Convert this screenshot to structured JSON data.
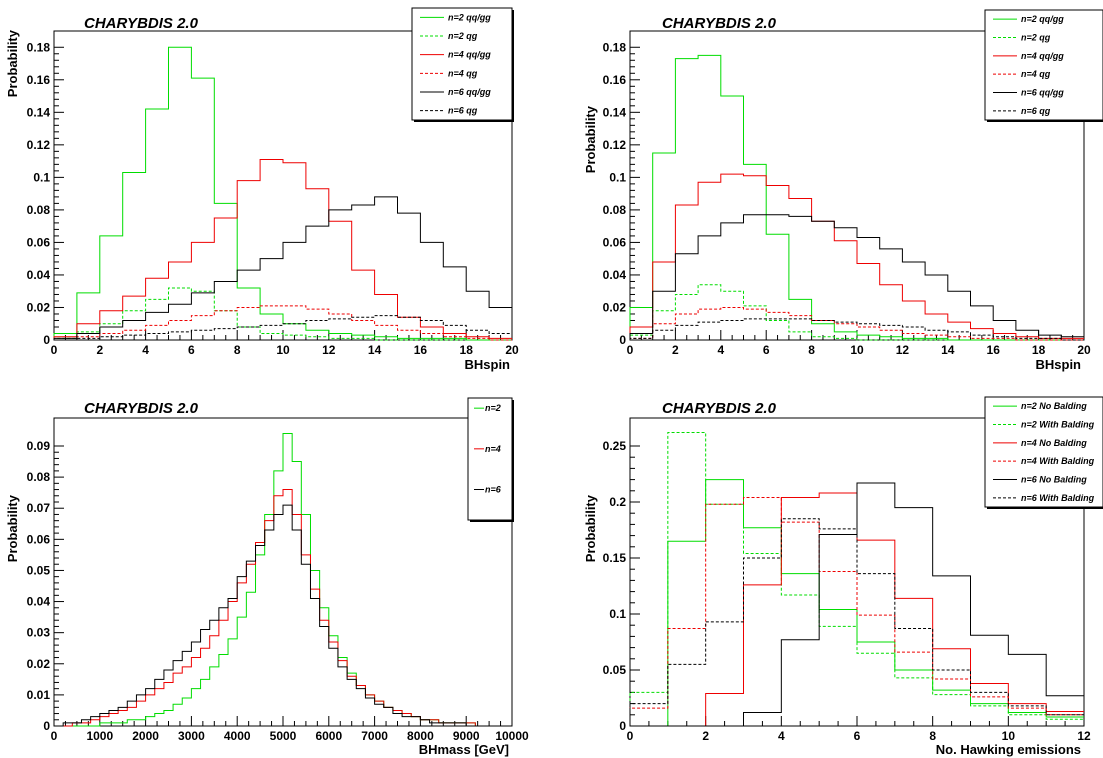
{
  "chart_data": [
    {
      "type": "line",
      "title": "CHARYBDIS 2.0",
      "xlabel": "BHspin",
      "ylabel": "Probability",
      "xlim": [
        0,
        20
      ],
      "ylim": [
        0,
        0.19
      ],
      "xticks": [
        0,
        2,
        4,
        6,
        8,
        10,
        12,
        14,
        16,
        18,
        20
      ],
      "xtick_labels": [
        "0",
        "2",
        "4",
        "6",
        "8",
        "10",
        "12",
        "14",
        "16",
        "18",
        "20"
      ],
      "yticks": [
        0,
        0.02,
        0.04,
        0.06,
        0.08,
        0.1,
        0.12,
        0.14,
        0.16,
        0.18
      ],
      "ytick_labels": [
        "0",
        "0.02",
        "0.04",
        "0.06",
        "0.08",
        "0.1",
        "0.12",
        "0.14",
        "0.16",
        "0.18"
      ],
      "bin_width": 1,
      "x": [
        0,
        1,
        2,
        3,
        4,
        5,
        6,
        7,
        8,
        9,
        10,
        11,
        12,
        13,
        14,
        15,
        16,
        17,
        18,
        19
      ],
      "legend_position": "top-right",
      "series": [
        {
          "name": "n=2 qq/gg",
          "color": "#00dd00",
          "dash": false,
          "values": [
            0.004,
            0.029,
            0.064,
            0.103,
            0.142,
            0.18,
            0.161,
            0.084,
            0.032,
            0.016,
            0.01,
            0.006,
            0.004,
            0.003,
            0.002,
            0.001,
            0.001,
            0.001,
            0.0,
            0.0
          ]
        },
        {
          "name": "n=2 qg",
          "color": "#00dd00",
          "dash": true,
          "values": [
            0.001,
            0.005,
            0.01,
            0.018,
            0.025,
            0.032,
            0.03,
            0.018,
            0.008,
            0.004,
            0.003,
            0.002,
            0.001,
            0.001,
            0.0,
            0.0,
            0.0,
            0.0,
            0.0,
            0.0
          ]
        },
        {
          "name": "n=4 qq/gg",
          "color": "#ee0000",
          "dash": false,
          "values": [
            0.002,
            0.01,
            0.018,
            0.027,
            0.038,
            0.048,
            0.06,
            0.075,
            0.098,
            0.111,
            0.109,
            0.093,
            0.073,
            0.043,
            0.028,
            0.014,
            0.008,
            0.004,
            0.002,
            0.001
          ]
        },
        {
          "name": "n=4 qg",
          "color": "#ee0000",
          "dash": true,
          "values": [
            0.0,
            0.002,
            0.004,
            0.006,
            0.009,
            0.012,
            0.015,
            0.018,
            0.02,
            0.021,
            0.021,
            0.019,
            0.016,
            0.012,
            0.009,
            0.006,
            0.004,
            0.002,
            0.001,
            0.0
          ]
        },
        {
          "name": "n=6 qq/gg",
          "color": "#000000",
          "dash": false,
          "values": [
            0.001,
            0.004,
            0.008,
            0.012,
            0.017,
            0.022,
            0.029,
            0.036,
            0.043,
            0.05,
            0.06,
            0.07,
            0.08,
            0.083,
            0.088,
            0.078,
            0.06,
            0.045,
            0.03,
            0.02
          ]
        },
        {
          "name": "n=6 qg",
          "color": "#000000",
          "dash": true,
          "values": [
            0.0,
            0.001,
            0.002,
            0.003,
            0.004,
            0.005,
            0.006,
            0.007,
            0.008,
            0.009,
            0.01,
            0.012,
            0.013,
            0.014,
            0.015,
            0.014,
            0.012,
            0.009,
            0.006,
            0.004
          ]
        }
      ]
    },
    {
      "type": "line",
      "title": "CHARYBDIS 2.0",
      "xlabel": "BHspin",
      "ylabel": "Probability",
      "xlim": [
        0,
        20
      ],
      "ylim": [
        0,
        0.19
      ],
      "xticks": [
        0,
        2,
        4,
        6,
        8,
        10,
        12,
        14,
        16,
        18,
        20
      ],
      "xtick_labels": [
        "0",
        "2",
        "4",
        "6",
        "8",
        "10",
        "12",
        "14",
        "16",
        "18",
        "20"
      ],
      "yticks": [
        0,
        0.02,
        0.04,
        0.06,
        0.08,
        0.1,
        0.12,
        0.14,
        0.16,
        0.18
      ],
      "ytick_labels": [
        "0",
        "0.02",
        "0.04",
        "0.06",
        "0.08",
        "0.1",
        "0.12",
        "0.14",
        "0.16",
        "0.18"
      ],
      "bin_width": 1,
      "x": [
        0,
        1,
        2,
        3,
        4,
        5,
        6,
        7,
        8,
        9,
        10,
        11,
        12,
        13,
        14,
        15,
        16,
        17,
        18,
        19
      ],
      "legend_position": "top-right",
      "series": [
        {
          "name": "n=2 qq/gg",
          "color": "#00dd00",
          "dash": false,
          "values": [
            0.02,
            0.115,
            0.173,
            0.175,
            0.15,
            0.108,
            0.065,
            0.025,
            0.01,
            0.005,
            0.003,
            0.002,
            0.001,
            0.001,
            0.0,
            0.0,
            0.0,
            0.0,
            0.0,
            0.0
          ]
        },
        {
          "name": "n=2 qg",
          "color": "#00dd00",
          "dash": true,
          "values": [
            0.003,
            0.018,
            0.028,
            0.034,
            0.03,
            0.021,
            0.012,
            0.005,
            0.002,
            0.001,
            0.0,
            0.0,
            0.0,
            0.0,
            0.0,
            0.0,
            0.0,
            0.0,
            0.0,
            0.0
          ]
        },
        {
          "name": "n=4 qq/gg",
          "color": "#ee0000",
          "dash": false,
          "values": [
            0.008,
            0.048,
            0.083,
            0.097,
            0.102,
            0.101,
            0.095,
            0.087,
            0.073,
            0.061,
            0.047,
            0.034,
            0.024,
            0.016,
            0.011,
            0.007,
            0.004,
            0.002,
            0.001,
            0.001
          ]
        },
        {
          "name": "n=4 qg",
          "color": "#ee0000",
          "dash": true,
          "values": [
            0.001,
            0.01,
            0.016,
            0.019,
            0.02,
            0.019,
            0.017,
            0.015,
            0.012,
            0.01,
            0.008,
            0.006,
            0.004,
            0.003,
            0.002,
            0.001,
            0.001,
            0.0,
            0.0,
            0.0
          ]
        },
        {
          "name": "n=6 qq/gg",
          "color": "#000000",
          "dash": false,
          "values": [
            0.004,
            0.03,
            0.053,
            0.064,
            0.072,
            0.077,
            0.077,
            0.076,
            0.073,
            0.069,
            0.063,
            0.056,
            0.048,
            0.04,
            0.03,
            0.021,
            0.012,
            0.006,
            0.003,
            0.002
          ]
        },
        {
          "name": "n=6 qg",
          "color": "#000000",
          "dash": true,
          "values": [
            0.001,
            0.006,
            0.009,
            0.011,
            0.012,
            0.013,
            0.013,
            0.013,
            0.012,
            0.011,
            0.01,
            0.009,
            0.008,
            0.006,
            0.005,
            0.003,
            0.002,
            0.001,
            0.001,
            0.0
          ]
        }
      ]
    },
    {
      "type": "line",
      "title": "CHARYBDIS 2.0",
      "xlabel": "BHmass [GeV]",
      "ylabel": "Probability",
      "xlim": [
        0,
        10000
      ],
      "ylim": [
        0,
        0.099
      ],
      "xticks": [
        0,
        1000,
        2000,
        3000,
        4000,
        5000,
        6000,
        7000,
        8000,
        9000,
        10000
      ],
      "xtick_labels": [
        "0",
        "1000",
        "2000",
        "3000",
        "4000",
        "5000",
        "6000",
        "7000",
        "8000",
        "9000",
        "10000"
      ],
      "yticks": [
        0,
        0.01,
        0.02,
        0.03,
        0.04,
        0.05,
        0.06,
        0.07,
        0.08,
        0.09
      ],
      "ytick_labels": [
        "0",
        "0.01",
        "0.02",
        "0.03",
        "0.04",
        "0.05",
        "0.06",
        "0.07",
        "0.08",
        "0.09"
      ],
      "bin_width": 200,
      "x": [
        0,
        200,
        400,
        600,
        800,
        1000,
        1200,
        1400,
        1600,
        1800,
        2000,
        2200,
        2400,
        2600,
        2800,
        3000,
        3200,
        3400,
        3600,
        3800,
        4000,
        4200,
        4400,
        4600,
        4800,
        5000,
        5200,
        5400,
        5600,
        5800,
        6000,
        6200,
        6400,
        6600,
        6800,
        7000,
        7200,
        7400,
        7600,
        7800,
        8000,
        8200,
        8400,
        8600,
        8800,
        9000,
        9200,
        9400,
        9600,
        9800
      ],
      "legend_position": "top-right",
      "series": [
        {
          "name": "n=2",
          "color": "#00dd00",
          "dash": false,
          "values": [
            0.0,
            0.0,
            0.0,
            0.0,
            0.0,
            0.001,
            0.001,
            0.001,
            0.002,
            0.002,
            0.003,
            0.004,
            0.005,
            0.007,
            0.009,
            0.012,
            0.015,
            0.019,
            0.023,
            0.028,
            0.035,
            0.043,
            0.055,
            0.068,
            0.082,
            0.094,
            0.085,
            0.068,
            0.05,
            0.038,
            0.029,
            0.022,
            0.017,
            0.013,
            0.01,
            0.008,
            0.006,
            0.005,
            0.004,
            0.003,
            0.002,
            0.002,
            0.001,
            0.001,
            0.001,
            0.001,
            0.0,
            0.0,
            0.0,
            0.0
          ]
        },
        {
          "name": "n=4",
          "color": "#ee0000",
          "dash": false,
          "values": [
            0.0,
            0.0,
            0.001,
            0.001,
            0.002,
            0.003,
            0.004,
            0.005,
            0.006,
            0.008,
            0.01,
            0.012,
            0.014,
            0.017,
            0.019,
            0.022,
            0.025,
            0.029,
            0.034,
            0.04,
            0.046,
            0.052,
            0.059,
            0.066,
            0.074,
            0.076,
            0.068,
            0.055,
            0.044,
            0.034,
            0.027,
            0.021,
            0.016,
            0.013,
            0.01,
            0.008,
            0.006,
            0.005,
            0.004,
            0.003,
            0.002,
            0.002,
            0.001,
            0.001,
            0.001,
            0.001,
            0.0,
            0.0,
            0.0,
            0.0
          ]
        },
        {
          "name": "n=6",
          "color": "#000000",
          "dash": false,
          "values": [
            0.0,
            0.001,
            0.001,
            0.002,
            0.003,
            0.004,
            0.005,
            0.006,
            0.008,
            0.01,
            0.012,
            0.015,
            0.018,
            0.021,
            0.024,
            0.027,
            0.031,
            0.034,
            0.038,
            0.041,
            0.048,
            0.053,
            0.058,
            0.063,
            0.068,
            0.071,
            0.063,
            0.052,
            0.041,
            0.032,
            0.025,
            0.019,
            0.015,
            0.012,
            0.009,
            0.007,
            0.006,
            0.004,
            0.003,
            0.003,
            0.002,
            0.001,
            0.001,
            0.001,
            0.001,
            0.0,
            0.0,
            0.0,
            0.0,
            0.0
          ]
        }
      ]
    },
    {
      "type": "line",
      "title": "CHARYBDIS 2.0",
      "xlabel": "No. Hawking emissions",
      "ylabel": "Probability",
      "xlim": [
        0,
        12
      ],
      "ylim": [
        0,
        0.275
      ],
      "xticks": [
        0,
        2,
        4,
        6,
        8,
        10,
        12
      ],
      "xtick_labels": [
        "0",
        "2",
        "4",
        "6",
        "8",
        "10",
        "12"
      ],
      "yticks": [
        0,
        0.05,
        0.1,
        0.15,
        0.2,
        0.25
      ],
      "ytick_labels": [
        "0",
        "0.05",
        "0.1",
        "0.15",
        "0.2",
        "0.25"
      ],
      "bin_width": 1,
      "x": [
        0,
        1,
        2,
        3,
        4,
        5,
        6,
        7,
        8,
        9,
        10,
        11
      ],
      "legend_position": "top-right",
      "series": [
        {
          "name": "n=2 No Balding",
          "color": "#00dd00",
          "dash": false,
          "values": [
            0.0,
            0.165,
            0.22,
            0.177,
            0.136,
            0.104,
            0.075,
            0.05,
            0.032,
            0.02,
            0.012,
            0.008
          ]
        },
        {
          "name": "n=2 With Balding",
          "color": "#00dd00",
          "dash": true,
          "values": [
            0.03,
            0.262,
            0.198,
            0.154,
            0.117,
            0.089,
            0.065,
            0.043,
            0.028,
            0.018,
            0.01,
            0.006
          ]
        },
        {
          "name": "n=4 No Balding",
          "color": "#ee0000",
          "dash": false,
          "values": [
            0.0,
            0.0,
            0.029,
            0.126,
            0.204,
            0.208,
            0.166,
            0.114,
            0.069,
            0.038,
            0.02,
            0.013
          ]
        },
        {
          "name": "n=4 With Balding",
          "color": "#ee0000",
          "dash": true,
          "values": [
            0.016,
            0.087,
            0.198,
            0.204,
            0.182,
            0.138,
            0.099,
            0.066,
            0.042,
            0.026,
            0.016,
            0.01
          ]
        },
        {
          "name": "n=6 No Balding",
          "color": "#000000",
          "dash": false,
          "values": [
            0.0,
            0.0,
            0.0,
            0.012,
            0.077,
            0.171,
            0.217,
            0.195,
            0.134,
            0.081,
            0.064,
            0.027
          ]
        },
        {
          "name": "n=6 With Balding",
          "color": "#000000",
          "dash": true,
          "values": [
            0.02,
            0.055,
            0.093,
            0.15,
            0.185,
            0.176,
            0.136,
            0.087,
            0.05,
            0.03,
            0.018,
            0.01
          ]
        }
      ]
    }
  ]
}
